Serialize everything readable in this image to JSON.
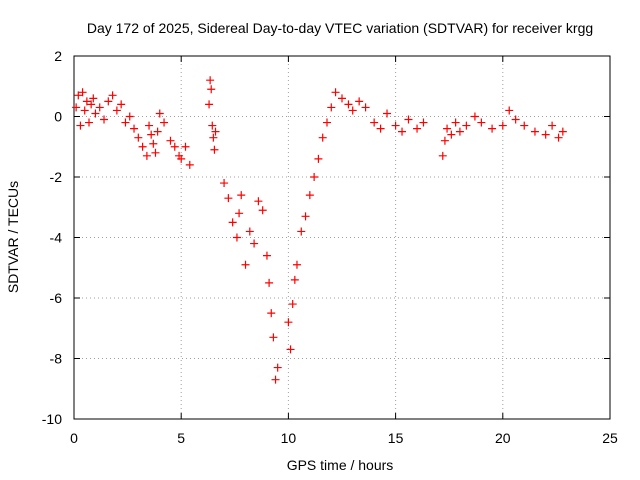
{
  "chart_data": {
    "type": "scatter",
    "title": "Day 172 of 2025, Sidereal Day-to-day VTEC variation (SDTVAR) for receiver krgg",
    "xlabel": "GPS time / hours",
    "ylabel": "SDTVAR / TECUs",
    "xlim": [
      0,
      25
    ],
    "ylim": [
      -10,
      2
    ],
    "xticks": [
      0,
      5,
      10,
      15,
      20,
      25
    ],
    "yticks": [
      -10,
      -8,
      -6,
      -4,
      -2,
      0,
      2
    ],
    "grid": true,
    "marker": "+",
    "color": "#ff0000",
    "series": [
      {
        "name": "SDTVAR",
        "x": [
          0.1,
          0.2,
          0.3,
          0.4,
          0.5,
          0.6,
          0.7,
          0.8,
          0.9,
          1.0,
          1.2,
          1.4,
          1.6,
          1.8,
          2.0,
          2.2,
          2.4,
          2.6,
          2.8,
          3.0,
          3.2,
          3.4,
          3.5,
          3.6,
          3.7,
          3.8,
          3.9,
          4.0,
          4.2,
          4.5,
          4.7,
          4.9,
          5.0,
          5.2,
          5.4,
          6.3,
          6.35,
          6.4,
          6.45,
          6.5,
          6.55,
          6.6,
          7.0,
          7.2,
          7.4,
          7.6,
          7.7,
          7.8,
          8.0,
          8.2,
          8.4,
          8.6,
          8.8,
          9.0,
          9.1,
          9.2,
          9.3,
          9.4,
          9.5,
          10.0,
          10.1,
          10.2,
          10.3,
          10.4,
          10.6,
          10.8,
          11.0,
          11.2,
          11.4,
          11.6,
          11.8,
          12.0,
          12.2,
          12.5,
          12.8,
          13.0,
          13.3,
          13.6,
          14.0,
          14.3,
          14.6,
          15.0,
          15.3,
          15.6,
          16.0,
          16.3,
          17.2,
          17.3,
          17.4,
          17.6,
          17.8,
          18.0,
          18.3,
          18.7,
          19.0,
          19.5,
          20.0,
          20.3,
          20.6,
          21.0,
          21.5,
          22.0,
          22.3,
          22.6,
          22.8
        ],
        "y": [
          0.3,
          0.7,
          -0.3,
          0.8,
          0.2,
          0.5,
          -0.2,
          0.4,
          0.6,
          0.1,
          0.3,
          -0.1,
          0.5,
          0.7,
          0.2,
          0.4,
          -0.2,
          0.0,
          -0.4,
          -0.7,
          -1.0,
          -1.3,
          -0.3,
          -0.6,
          -0.9,
          -1.2,
          -0.5,
          0.1,
          -0.2,
          -0.8,
          -1.0,
          -1.3,
          -1.4,
          -1.0,
          -1.6,
          0.4,
          1.2,
          0.9,
          -0.3,
          -0.7,
          -1.1,
          -0.5,
          -2.2,
          -2.7,
          -3.5,
          -4.0,
          -3.2,
          -2.6,
          -4.9,
          -3.8,
          -4.2,
          -2.8,
          -3.1,
          -4.6,
          -5.5,
          -6.5,
          -7.3,
          -8.7,
          -8.3,
          -6.8,
          -7.7,
          -6.2,
          -5.4,
          -4.9,
          -3.8,
          -3.3,
          -2.6,
          -2.0,
          -1.4,
          -0.7,
          -0.2,
          0.3,
          0.8,
          0.6,
          0.4,
          0.2,
          0.5,
          0.3,
          -0.2,
          -0.4,
          0.1,
          -0.3,
          -0.5,
          -0.1,
          -0.4,
          -0.2,
          -1.3,
          -0.8,
          -0.4,
          -0.6,
          -0.2,
          -0.5,
          -0.3,
          0.0,
          -0.2,
          -0.4,
          -0.3,
          0.2,
          -0.1,
          -0.3,
          -0.5,
          -0.6,
          -0.3,
          -0.7,
          -0.5
        ]
      }
    ]
  }
}
